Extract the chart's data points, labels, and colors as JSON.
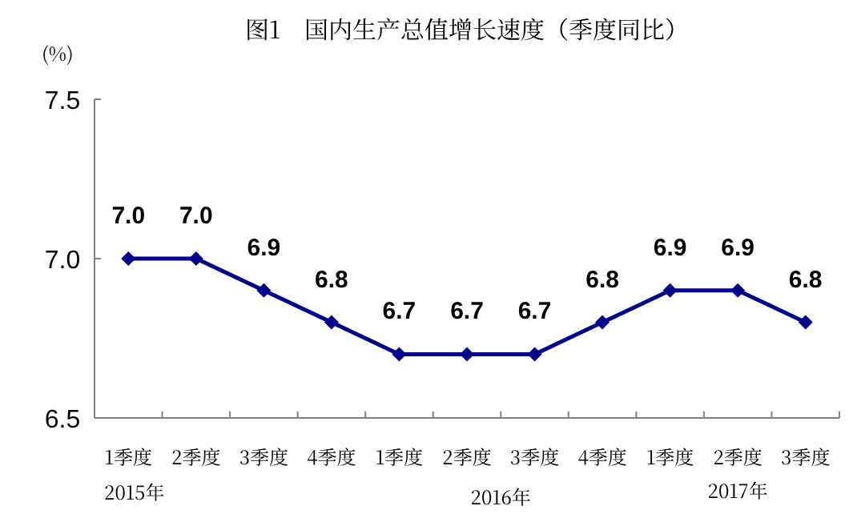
{
  "chart_data": {
    "type": "line",
    "title": "图1　国内生产总值增长速度（季度同比）",
    "ylabel": "(%)",
    "categories": [
      "1季度",
      "2季度",
      "3季度",
      "4季度",
      "1季度",
      "2季度",
      "3季度",
      "4季度",
      "1季度",
      "2季度",
      "3季度"
    ],
    "series": [
      {
        "color": "#00008b",
        "values": [
          7.0,
          7.0,
          6.9,
          6.8,
          6.7,
          6.7,
          6.7,
          6.8,
          6.9,
          6.9,
          6.8
        ],
        "value_labels": [
          "7.0",
          "7.0",
          "6.9",
          "6.8",
          "6.7",
          "6.7",
          "6.7",
          "6.8",
          "6.9",
          "6.9",
          "6.8"
        ]
      }
    ],
    "annotations": [
      "2015年",
      "2016年",
      "2017年"
    ],
    "ylim": [
      6.5,
      7.5
    ],
    "yticks": [
      {
        "value": 6.5,
        "label": "6.5"
      },
      {
        "value": 7.0,
        "label": "7.0"
      },
      {
        "value": 7.5,
        "label": "7.5"
      }
    ],
    "marker": "diamond",
    "grid": false
  }
}
